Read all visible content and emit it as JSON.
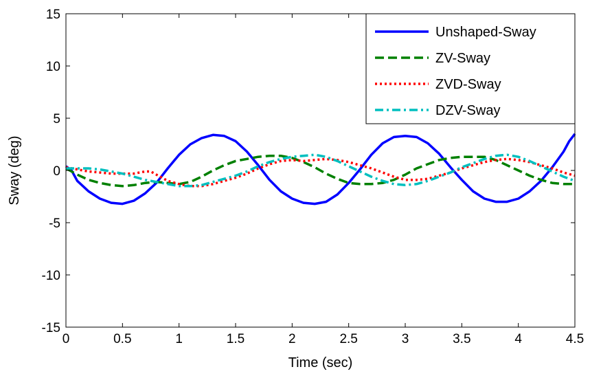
{
  "chart_data": {
    "type": "line",
    "title": "",
    "xlabel": "Time (sec)",
    "ylabel": "Sway (deg)",
    "xlim": [
      0,
      4.5
    ],
    "ylim": [
      -15,
      15
    ],
    "xticks": [
      0,
      0.5,
      1,
      1.5,
      2,
      2.5,
      3,
      3.5,
      4,
      4.5
    ],
    "xtick_labels": [
      "0",
      "0.5",
      "1",
      "1.5",
      "2",
      "2.5",
      "3",
      "3.5",
      "4",
      "4.5"
    ],
    "yticks": [
      -15,
      -10,
      -5,
      0,
      5,
      10,
      15
    ],
    "ytick_labels": [
      "-15",
      "-10",
      "-5",
      "0",
      "5",
      "10",
      "15"
    ],
    "grid": false,
    "legend_position": "top-right",
    "series": [
      {
        "name": "Unshaped-Sway",
        "color": "#0000ff",
        "style": "solid",
        "points": [
          [
            0,
            0.4
          ],
          [
            0.05,
            0.0
          ],
          [
            0.1,
            -1.0
          ],
          [
            0.2,
            -2.0
          ],
          [
            0.3,
            -2.7
          ],
          [
            0.4,
            -3.1
          ],
          [
            0.5,
            -3.2
          ],
          [
            0.6,
            -2.9
          ],
          [
            0.7,
            -2.2
          ],
          [
            0.8,
            -1.2
          ],
          [
            0.9,
            0.2
          ],
          [
            1.0,
            1.5
          ],
          [
            1.1,
            2.5
          ],
          [
            1.2,
            3.1
          ],
          [
            1.3,
            3.4
          ],
          [
            1.4,
            3.3
          ],
          [
            1.5,
            2.8
          ],
          [
            1.6,
            1.8
          ],
          [
            1.7,
            0.5
          ],
          [
            1.8,
            -0.9
          ],
          [
            1.9,
            -2.0
          ],
          [
            2.0,
            -2.7
          ],
          [
            2.1,
            -3.1
          ],
          [
            2.2,
            -3.2
          ],
          [
            2.3,
            -3.0
          ],
          [
            2.4,
            -2.3
          ],
          [
            2.5,
            -1.2
          ],
          [
            2.6,
            0.1
          ],
          [
            2.7,
            1.5
          ],
          [
            2.8,
            2.6
          ],
          [
            2.9,
            3.2
          ],
          [
            3.0,
            3.3
          ],
          [
            3.1,
            3.2
          ],
          [
            3.2,
            2.6
          ],
          [
            3.3,
            1.6
          ],
          [
            3.4,
            0.3
          ],
          [
            3.5,
            -0.9
          ],
          [
            3.6,
            -2.0
          ],
          [
            3.7,
            -2.7
          ],
          [
            3.8,
            -3.0
          ],
          [
            3.9,
            -3.0
          ],
          [
            4.0,
            -2.7
          ],
          [
            4.1,
            -2.0
          ],
          [
            4.2,
            -1.0
          ],
          [
            4.3,
            0.3
          ],
          [
            4.4,
            1.8
          ],
          [
            4.45,
            2.8
          ],
          [
            4.5,
            3.5
          ]
        ]
      },
      {
        "name": "ZV-Sway",
        "color": "#008000",
        "style": "dashed",
        "points": [
          [
            0,
            0.2
          ],
          [
            0.1,
            -0.4
          ],
          [
            0.2,
            -0.9
          ],
          [
            0.3,
            -1.2
          ],
          [
            0.4,
            -1.4
          ],
          [
            0.5,
            -1.5
          ],
          [
            0.6,
            -1.4
          ],
          [
            0.7,
            -1.2
          ],
          [
            0.8,
            -1.1
          ],
          [
            0.9,
            -1.2
          ],
          [
            1.0,
            -1.3
          ],
          [
            1.1,
            -1.1
          ],
          [
            1.2,
            -0.6
          ],
          [
            1.3,
            0.0
          ],
          [
            1.4,
            0.5
          ],
          [
            1.5,
            0.9
          ],
          [
            1.6,
            1.1
          ],
          [
            1.7,
            1.3
          ],
          [
            1.8,
            1.4
          ],
          [
            1.9,
            1.4
          ],
          [
            2.0,
            1.2
          ],
          [
            2.1,
            0.8
          ],
          [
            2.2,
            0.3
          ],
          [
            2.3,
            -0.3
          ],
          [
            2.4,
            -0.8
          ],
          [
            2.5,
            -1.2
          ],
          [
            2.6,
            -1.3
          ],
          [
            2.7,
            -1.3
          ],
          [
            2.8,
            -1.2
          ],
          [
            2.9,
            -0.9
          ],
          [
            3.0,
            -0.4
          ],
          [
            3.1,
            0.2
          ],
          [
            3.2,
            0.6
          ],
          [
            3.3,
            1.0
          ],
          [
            3.4,
            1.2
          ],
          [
            3.5,
            1.3
          ],
          [
            3.6,
            1.3
          ],
          [
            3.7,
            1.3
          ],
          [
            3.8,
            1.0
          ],
          [
            3.9,
            0.5
          ],
          [
            4.0,
            0.0
          ],
          [
            4.1,
            -0.5
          ],
          [
            4.2,
            -0.9
          ],
          [
            4.3,
            -1.2
          ],
          [
            4.4,
            -1.3
          ],
          [
            4.5,
            -1.3
          ]
        ]
      },
      {
        "name": "ZVD-Sway",
        "color": "#ff0000",
        "style": "dotted",
        "points": [
          [
            0,
            0.3
          ],
          [
            0.1,
            0.1
          ],
          [
            0.2,
            -0.1
          ],
          [
            0.3,
            -0.2
          ],
          [
            0.4,
            -0.3
          ],
          [
            0.5,
            -0.3
          ],
          [
            0.6,
            -0.3
          ],
          [
            0.7,
            -0.1
          ],
          [
            0.75,
            -0.1
          ],
          [
            0.8,
            -0.4
          ],
          [
            0.9,
            -1.0
          ],
          [
            1.0,
            -1.3
          ],
          [
            1.1,
            -1.5
          ],
          [
            1.2,
            -1.5
          ],
          [
            1.3,
            -1.3
          ],
          [
            1.4,
            -1.0
          ],
          [
            1.5,
            -0.7
          ],
          [
            1.6,
            -0.3
          ],
          [
            1.7,
            0.2
          ],
          [
            1.8,
            0.6
          ],
          [
            1.9,
            0.9
          ],
          [
            2.0,
            1.0
          ],
          [
            2.1,
            0.9
          ],
          [
            2.2,
            1.0
          ],
          [
            2.3,
            1.1
          ],
          [
            2.4,
            1.0
          ],
          [
            2.5,
            0.8
          ],
          [
            2.6,
            0.5
          ],
          [
            2.7,
            0.2
          ],
          [
            2.8,
            -0.2
          ],
          [
            2.9,
            -0.6
          ],
          [
            3.0,
            -0.9
          ],
          [
            3.1,
            -0.9
          ],
          [
            3.2,
            -0.8
          ],
          [
            3.3,
            -0.5
          ],
          [
            3.4,
            -0.2
          ],
          [
            3.5,
            0.2
          ],
          [
            3.6,
            0.5
          ],
          [
            3.7,
            0.8
          ],
          [
            3.8,
            1.0
          ],
          [
            3.9,
            1.1
          ],
          [
            4.0,
            1.0
          ],
          [
            4.1,
            0.8
          ],
          [
            4.2,
            0.5
          ],
          [
            4.3,
            0.2
          ],
          [
            4.4,
            -0.2
          ],
          [
            4.5,
            -0.5
          ]
        ]
      },
      {
        "name": "DZV-Sway",
        "color": "#00bfbf",
        "style": "dashdot",
        "points": [
          [
            0,
            0.2
          ],
          [
            0.1,
            0.2
          ],
          [
            0.2,
            0.2
          ],
          [
            0.3,
            0.1
          ],
          [
            0.4,
            -0.1
          ],
          [
            0.5,
            -0.3
          ],
          [
            0.6,
            -0.6
          ],
          [
            0.7,
            -0.9
          ],
          [
            0.8,
            -1.1
          ],
          [
            0.9,
            -1.3
          ],
          [
            1.0,
            -1.5
          ],
          [
            1.1,
            -1.5
          ],
          [
            1.2,
            -1.4
          ],
          [
            1.3,
            -1.1
          ],
          [
            1.4,
            -0.8
          ],
          [
            1.5,
            -0.5
          ],
          [
            1.6,
            -0.1
          ],
          [
            1.7,
            0.4
          ],
          [
            1.8,
            0.8
          ],
          [
            1.9,
            1.1
          ],
          [
            2.0,
            1.3
          ],
          [
            2.1,
            1.4
          ],
          [
            2.2,
            1.5
          ],
          [
            2.3,
            1.3
          ],
          [
            2.4,
            0.9
          ],
          [
            2.5,
            0.4
          ],
          [
            2.6,
            -0.1
          ],
          [
            2.7,
            -0.6
          ],
          [
            2.8,
            -1.0
          ],
          [
            2.9,
            -1.3
          ],
          [
            3.0,
            -1.4
          ],
          [
            3.1,
            -1.3
          ],
          [
            3.2,
            -1.0
          ],
          [
            3.3,
            -0.6
          ],
          [
            3.4,
            -0.2
          ],
          [
            3.5,
            0.3
          ],
          [
            3.6,
            0.7
          ],
          [
            3.7,
            1.1
          ],
          [
            3.8,
            1.4
          ],
          [
            3.9,
            1.5
          ],
          [
            4.0,
            1.3
          ],
          [
            4.1,
            0.9
          ],
          [
            4.2,
            0.4
          ],
          [
            4.3,
            -0.1
          ],
          [
            4.4,
            -0.6
          ],
          [
            4.5,
            -1.0
          ]
        ]
      }
    ]
  }
}
